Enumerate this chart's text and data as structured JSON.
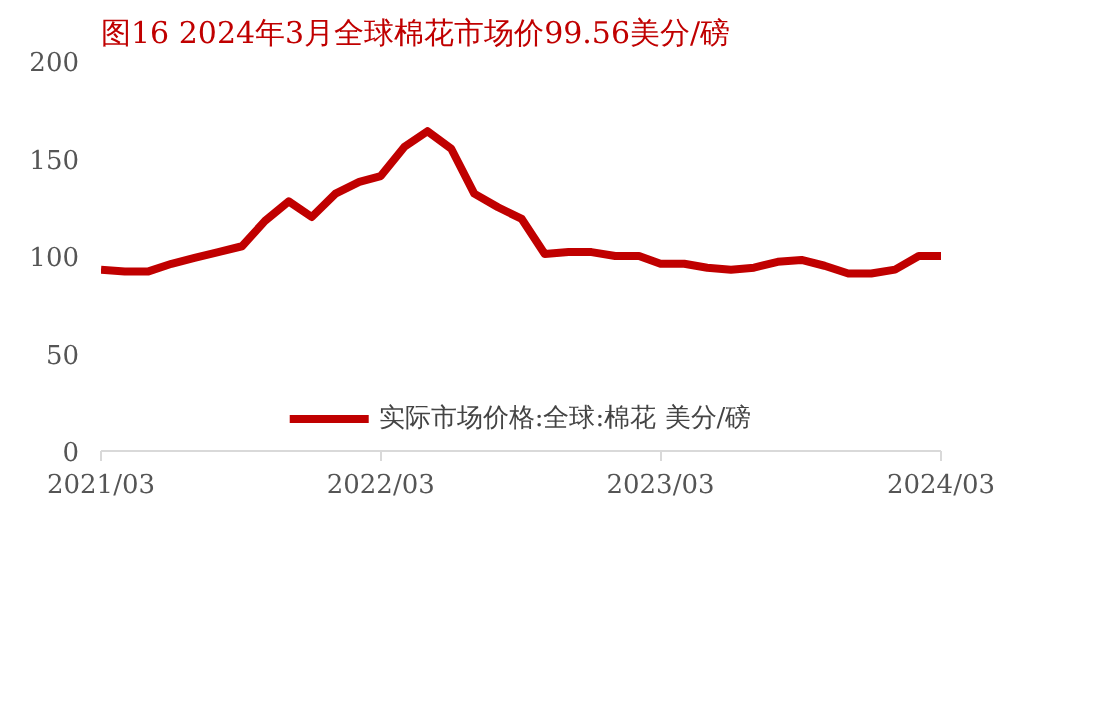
{
  "chart_data": {
    "type": "line",
    "title": "图16  2024年3月全球棉花市场价99.56美分/磅",
    "x": [
      "2021-03",
      "2021-04",
      "2021-05",
      "2021-06",
      "2021-07",
      "2021-08",
      "2021-09",
      "2021-10",
      "2021-11",
      "2021-12",
      "2022-01",
      "2022-02",
      "2022-03",
      "2022-04",
      "2022-05",
      "2022-06",
      "2022-07",
      "2022-08",
      "2022-09",
      "2022-10",
      "2022-11",
      "2022-12",
      "2023-01",
      "2023-02",
      "2023-03",
      "2023-04",
      "2023-05",
      "2023-06",
      "2023-07",
      "2023-08",
      "2023-09",
      "2023-10",
      "2023-11",
      "2023-12",
      "2024-01",
      "2024-02",
      "2024-03"
    ],
    "series": [
      {
        "name": "实际市场价格:全球:棉花 美分/磅",
        "color": "#c00000",
        "values": [
          93,
          92,
          92,
          96,
          99,
          102,
          105,
          118,
          128,
          120,
          132,
          138,
          141,
          156,
          164,
          155,
          132,
          125,
          119,
          101,
          102,
          102,
          100,
          100,
          96,
          96,
          94,
          93,
          94,
          97,
          98,
          95,
          91,
          91,
          93,
          100,
          100
        ]
      }
    ],
    "xlim": [
      "2021-03",
      "2024-03"
    ],
    "xticks": [
      {
        "value": "2021-03",
        "label": "2021/03"
      },
      {
        "value": "2022-03",
        "label": "2022/03"
      },
      {
        "value": "2023-03",
        "label": "2023/03"
      },
      {
        "value": "2024-03",
        "label": "2024/03"
      }
    ],
    "ylim": [
      0,
      200
    ],
    "yticks": [
      0,
      50,
      100,
      150,
      200
    ],
    "grid": false,
    "legend": "bottom",
    "marker": "none",
    "line_style": "solid"
  }
}
